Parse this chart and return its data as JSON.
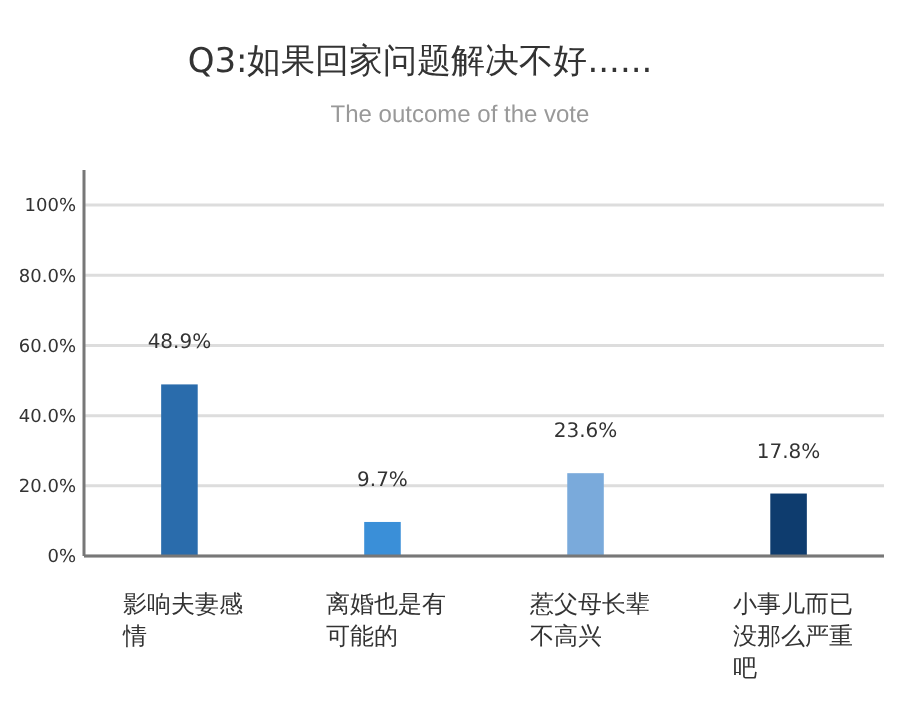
{
  "chart_data": {
    "type": "bar",
    "title": "Q3:如果回家问题解决不好......",
    "subtitle": "The outcome of the vote",
    "categories": [
      "影响夫妻感情",
      "离婚也是有可能的",
      "惹父母长辈不高兴",
      "小事儿而已没那么严重吧"
    ],
    "values": [
      48.9,
      9.7,
      23.6,
      17.8
    ],
    "colors": [
      "#2a6cac",
      "#3a8fd8",
      "#7aaadb",
      "#0e3c6e"
    ],
    "value_labels": [
      "48.9%",
      "9.7%",
      "23.6%",
      "17.8%"
    ],
    "ylim": [
      0,
      110
    ],
    "yticks": [
      {
        "value": 0,
        "label": "0%"
      },
      {
        "value": 20,
        "label": "20.0%"
      },
      {
        "value": 40,
        "label": "40.0%"
      },
      {
        "value": 60,
        "label": "60.0%"
      },
      {
        "value": 80,
        "label": "80.0%"
      },
      {
        "value": 100,
        "label": "100%"
      }
    ],
    "grid": "y"
  }
}
